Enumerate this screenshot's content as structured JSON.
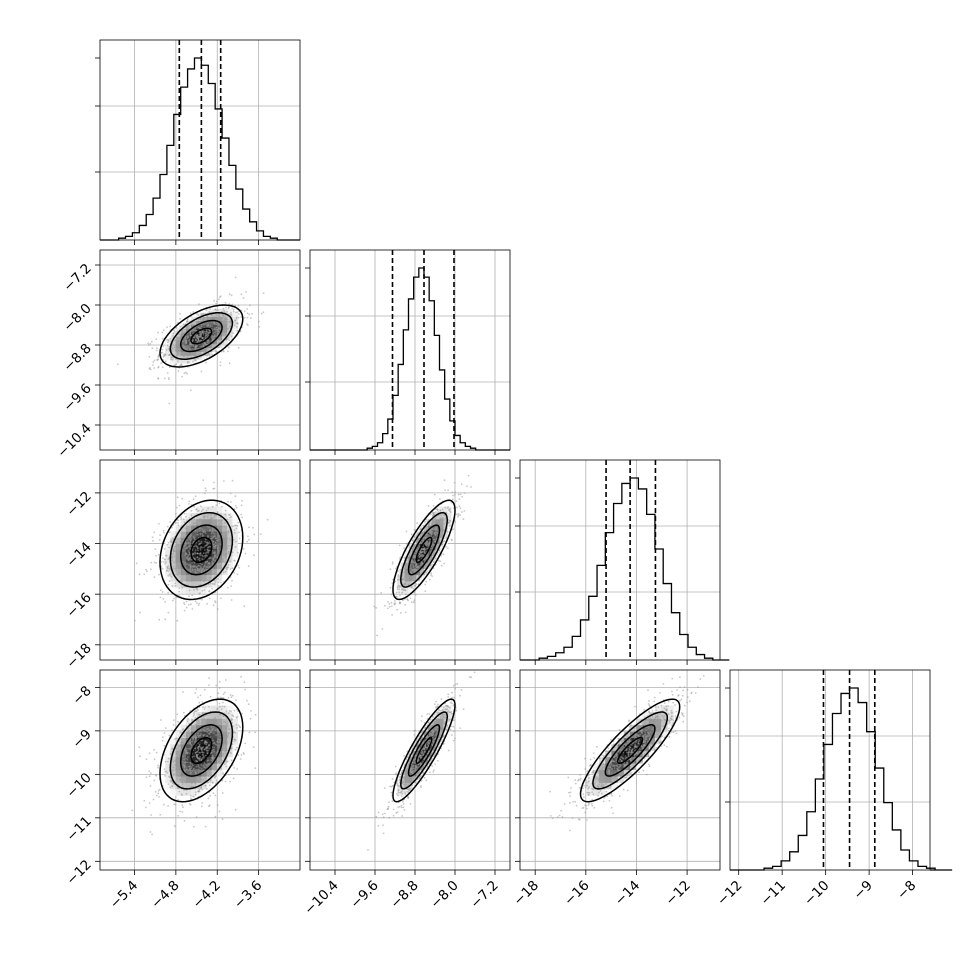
{
  "chart_data": {
    "type": "corner",
    "title": "",
    "n_params": 4,
    "grid": true,
    "params": [
      {
        "range": [
          -5.9,
          -3.0
        ],
        "ticks": [
          -5.4,
          -4.8,
          -4.2,
          -3.6
        ],
        "tick_labels": [
          "−5.4",
          "−4.8",
          "−4.2",
          "−3.6"
        ],
        "quantiles": [
          -4.75,
          -4.43,
          -4.15
        ]
      },
      {
        "range": [
          -10.9,
          -6.9
        ],
        "ticks": [
          -10.4,
          -9.6,
          -8.8,
          -8.0,
          -7.2
        ],
        "tick_labels": [
          "−10.4",
          "−9.6",
          "−8.8",
          "−8.0",
          "−7.2"
        ],
        "quantiles": [
          -9.25,
          -8.62,
          -8.02
        ]
      },
      {
        "range": [
          -18.6,
          -10.7
        ],
        "ticks": [
          -18,
          -16,
          -14,
          -12
        ],
        "tick_labels": [
          "−18",
          "−16",
          "−14",
          "−12"
        ],
        "quantiles": [
          -15.2,
          -14.25,
          -13.25
        ]
      },
      {
        "range": [
          -12.2,
          -7.6
        ],
        "ticks": [
          -12,
          -11,
          -10,
          -9,
          -8
        ],
        "tick_labels": [
          "−12",
          "−11",
          "−10",
          "−9",
          "−8"
        ],
        "quantiles": [
          -10.05,
          -9.45,
          -8.87
        ]
      }
    ],
    "histograms": [
      [
        0.01,
        0.02,
        0.04,
        0.08,
        0.14,
        0.23,
        0.36,
        0.52,
        0.69,
        0.84,
        0.94,
        1.0,
        0.96,
        0.86,
        0.72,
        0.56,
        0.41,
        0.28,
        0.17,
        0.1,
        0.05,
        0.02,
        0.01,
        0.0
      ],
      [
        0.0,
        0.01,
        0.02,
        0.04,
        0.09,
        0.17,
        0.3,
        0.47,
        0.66,
        0.83,
        0.95,
        1.0,
        0.95,
        0.82,
        0.63,
        0.44,
        0.28,
        0.16,
        0.08,
        0.04,
        0.02,
        0.01,
        0.0,
        0.0
      ],
      [
        0.0,
        0.01,
        0.02,
        0.04,
        0.07,
        0.13,
        0.22,
        0.35,
        0.52,
        0.7,
        0.86,
        0.97,
        1.0,
        0.94,
        0.8,
        0.61,
        0.42,
        0.26,
        0.14,
        0.07,
        0.03,
        0.01,
        0.0,
        0.0
      ],
      [
        0.0,
        0.0,
        0.01,
        0.02,
        0.05,
        0.1,
        0.19,
        0.32,
        0.5,
        0.69,
        0.86,
        0.97,
        1.0,
        0.92,
        0.76,
        0.56,
        0.37,
        0.22,
        0.11,
        0.05,
        0.02,
        0.01,
        0.0,
        0.0
      ]
    ],
    "mean": [
      -4.43,
      -8.62,
      -14.25,
      -9.45
    ],
    "std": [
      0.3,
      0.31,
      0.98,
      0.59
    ],
    "correlation": [
      [
        1.0,
        0.55,
        0.25,
        0.45
      ],
      [
        0.55,
        1.0,
        0.8,
        0.88
      ],
      [
        0.25,
        0.8,
        1.0,
        0.85
      ],
      [
        0.45,
        0.88,
        0.85,
        1.0
      ]
    ]
  }
}
